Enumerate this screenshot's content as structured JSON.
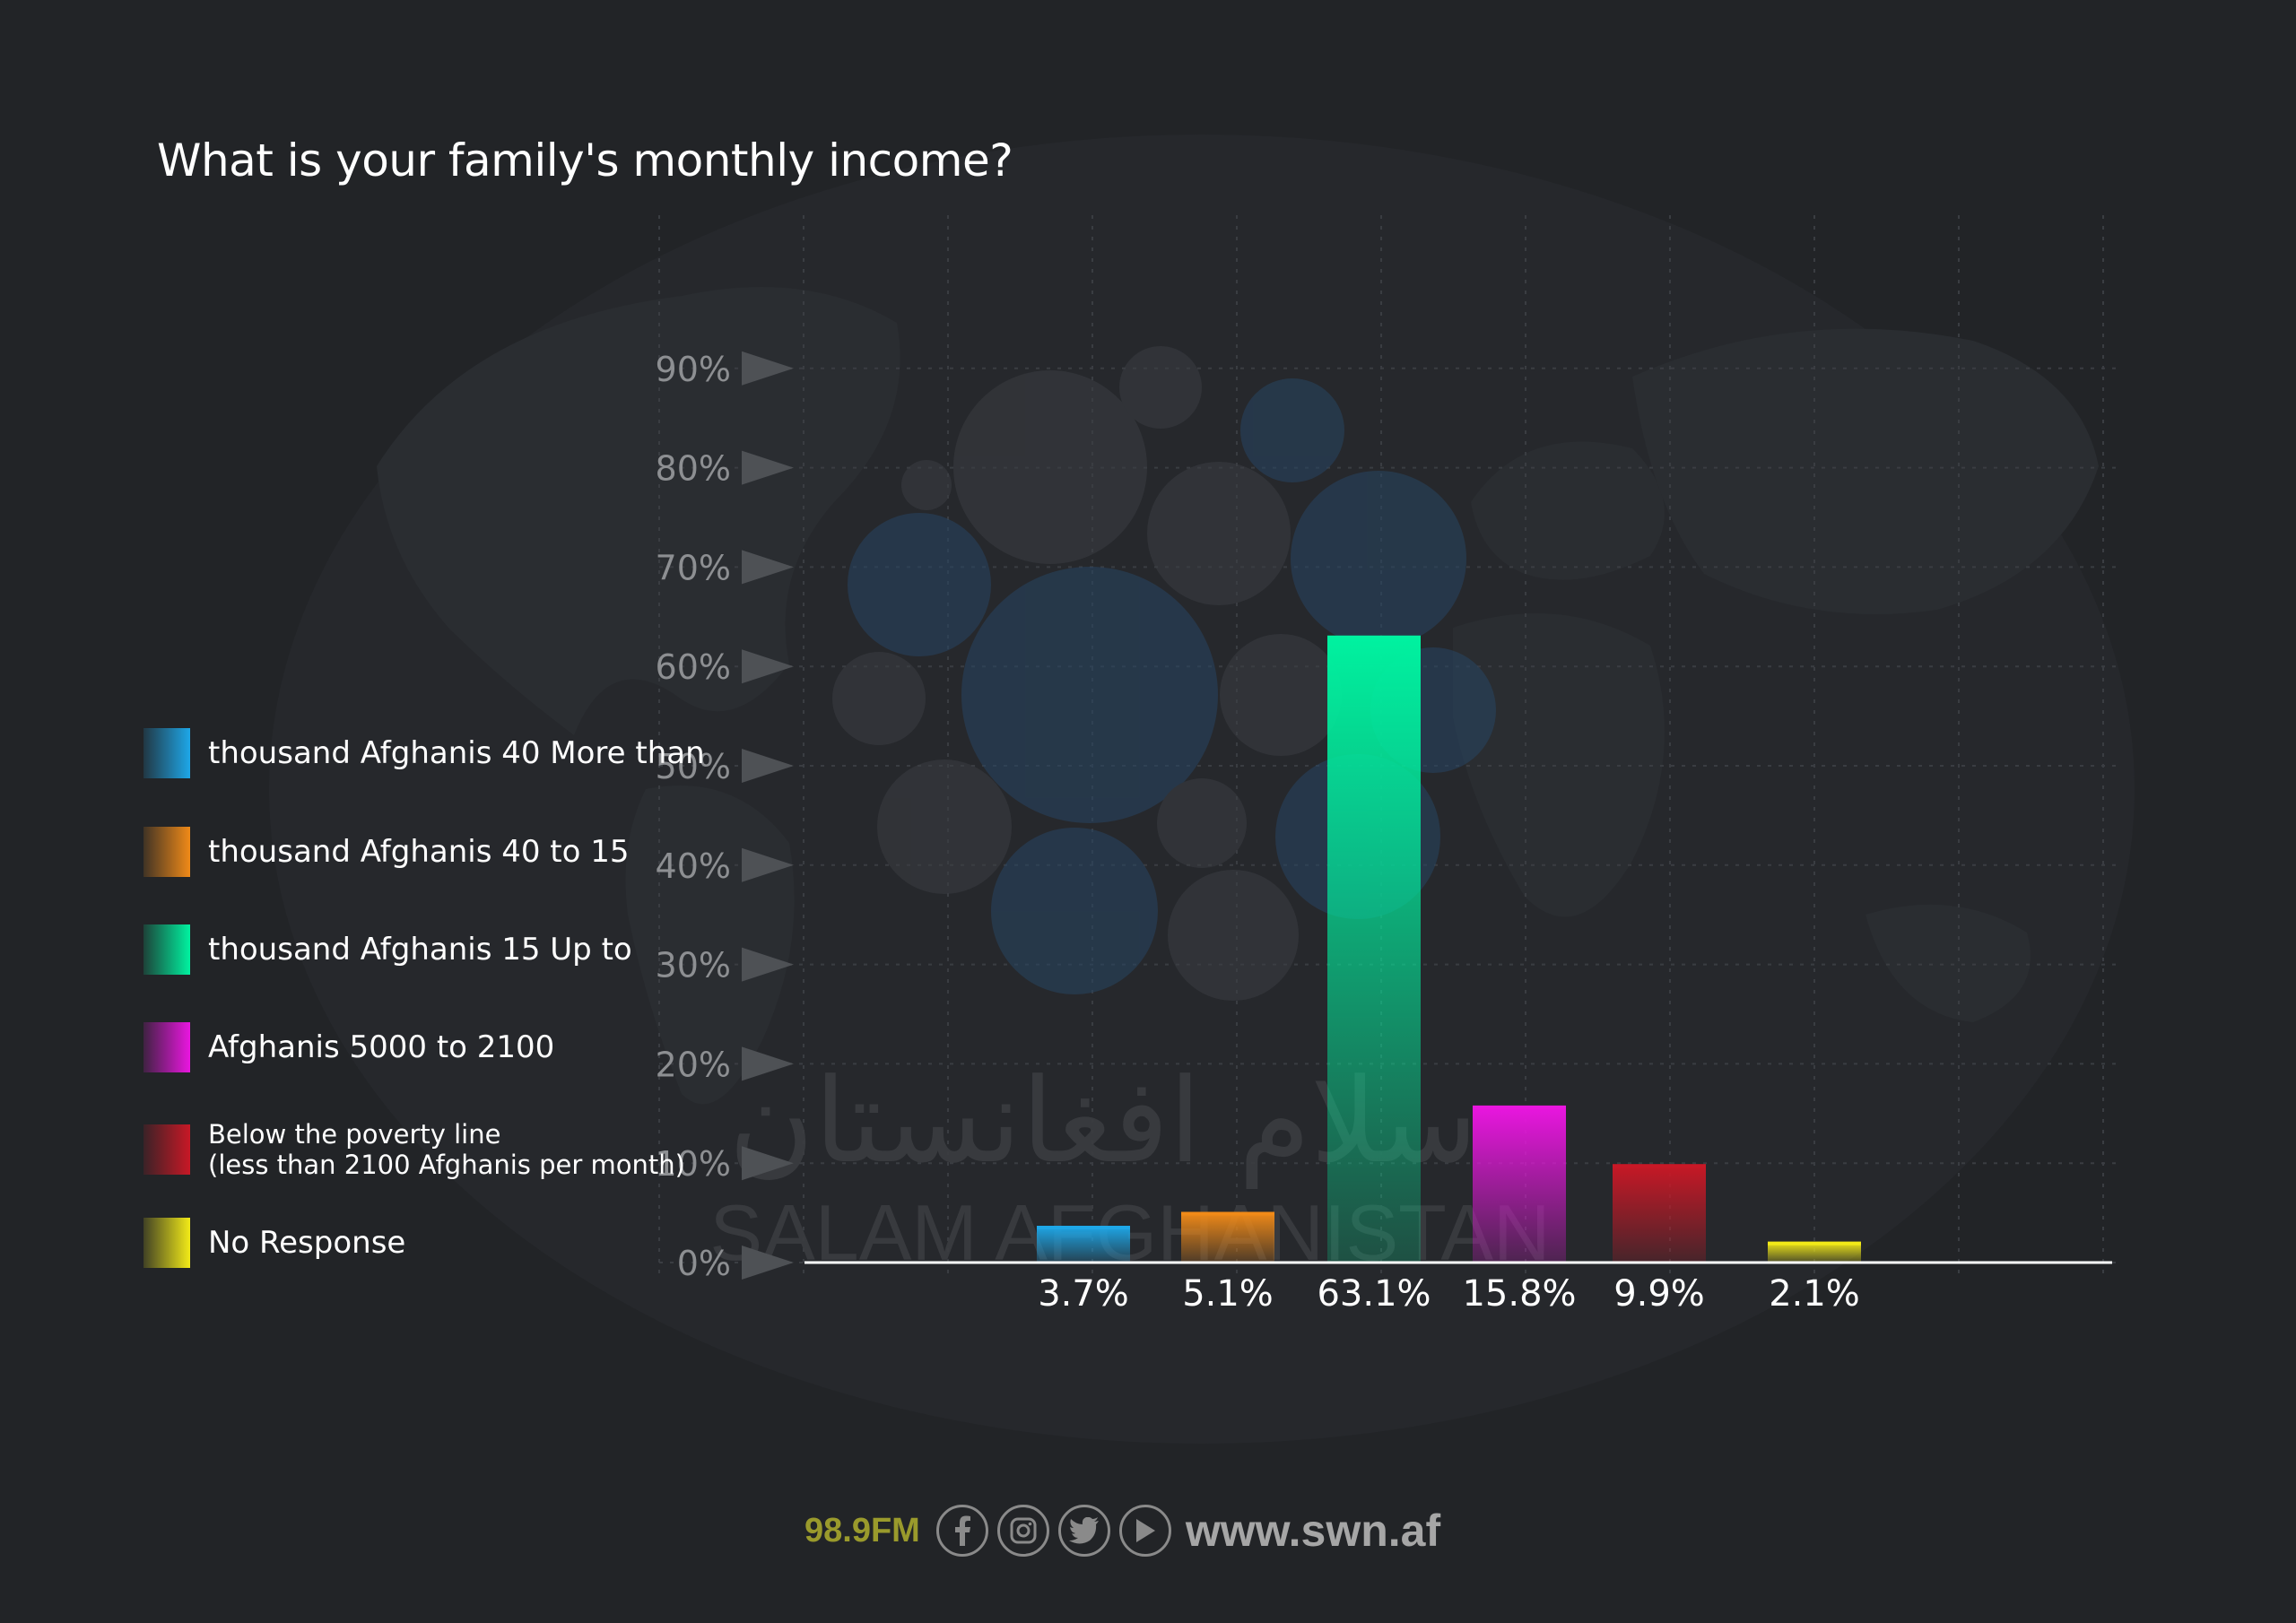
{
  "title": "What is your family's monthly income?",
  "chart_data": {
    "type": "bar",
    "categories": [
      "thousand Afghanis 40 More than",
      "thousand Afghanis 40 to 15",
      "thousand Afghanis 15 Up to",
      "Afghanis 5000 to 2100",
      "Below the poverty line\n(less than 2100 Afghanis per month)",
      "No Response"
    ],
    "values": [
      3.7,
      5.1,
      63.1,
      15.8,
      9.9,
      2.1
    ],
    "value_labels": [
      "3.7%",
      "5.1%",
      "63.1%",
      "15.8%",
      "9.9%",
      "2.1%"
    ],
    "colors": [
      "#1ea7e8",
      "#f08a18",
      "#00f2a0",
      "#ea16e0",
      "#c81826",
      "#f2ea18"
    ],
    "ylim": [
      0,
      90
    ],
    "yticks": [
      "0%",
      "10%",
      "20%",
      "30%",
      "40%",
      "50%",
      "60%",
      "70%",
      "80%",
      "90%"
    ],
    "ytick_values": [
      0,
      10,
      20,
      30,
      40,
      50,
      60,
      70,
      80,
      90
    ],
    "legend_position": "left"
  },
  "watermark": {
    "arabic": "سلام افغانستان",
    "latin": "SALAM AFGHANISTAN"
  },
  "footer": {
    "frequency": "98.9FM",
    "website": "www.swn.af",
    "icons": [
      "facebook-icon",
      "instagram-icon",
      "twitter-icon",
      "play-icon"
    ]
  }
}
